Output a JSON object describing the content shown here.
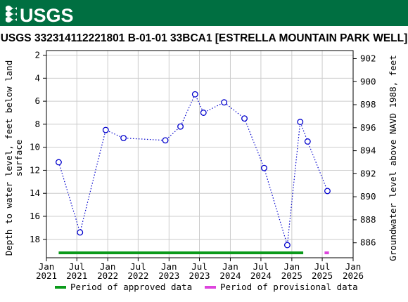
{
  "header": {
    "logo_text": "USGS",
    "bar_color": "#006f41"
  },
  "chart_data": {
    "type": "scatter",
    "title": "USGS 332314112221801 B-01-01 33BCA1 [ESTRELLA MOUNTAIN PARK WELL]",
    "ylabel_left": "Depth to water level, feet below land surface",
    "ylabel_right": "Groundwater level above NAVD 1988, feet",
    "y_left_range": [
      19.6,
      1.6
    ],
    "y_left_ticks": [
      2,
      4,
      6,
      8,
      10,
      12,
      14,
      16,
      18
    ],
    "y_right_ticks": [
      886,
      888,
      890,
      892,
      894,
      896,
      898,
      900,
      902
    ],
    "right_axis_offset": 904.3,
    "x_range": [
      "2021-01-01",
      "2026-01-01"
    ],
    "x_ticks": [
      {
        "date": "2021-01-01",
        "label1": "Jan",
        "label2": "2021"
      },
      {
        "date": "2021-07-01",
        "label1": "Jul",
        "label2": "2021"
      },
      {
        "date": "2022-01-01",
        "label1": "Jan",
        "label2": "2022"
      },
      {
        "date": "2022-07-01",
        "label1": "Jul",
        "label2": "2022"
      },
      {
        "date": "2023-01-01",
        "label1": "Jan",
        "label2": "2023"
      },
      {
        "date": "2023-07-01",
        "label1": "Jul",
        "label2": "2023"
      },
      {
        "date": "2024-01-01",
        "label1": "Jan",
        "label2": "2024"
      },
      {
        "date": "2024-07-01",
        "label1": "Jul",
        "label2": "2024"
      },
      {
        "date": "2025-01-01",
        "label1": "Jan",
        "label2": "2025"
      },
      {
        "date": "2025-07-01",
        "label1": "Jul",
        "label2": "2025"
      },
      {
        "date": "2026-01-01",
        "label1": "Jan",
        "label2": "2026"
      }
    ],
    "series": [
      {
        "points": [
          {
            "date": "2021-03-15",
            "value": 11.3
          },
          {
            "date": "2021-07-20",
            "value": 17.4
          },
          {
            "date": "2021-12-20",
            "value": 8.5
          },
          {
            "date": "2022-04-05",
            "value": 9.2
          },
          {
            "date": "2022-12-10",
            "value": 9.4
          },
          {
            "date": "2023-03-10",
            "value": 8.2
          },
          {
            "date": "2023-06-05",
            "value": 5.4
          },
          {
            "date": "2023-07-25",
            "value": 7.0
          },
          {
            "date": "2023-11-25",
            "value": 6.1
          },
          {
            "date": "2024-03-25",
            "value": 7.5
          },
          {
            "date": "2024-07-20",
            "value": 11.8
          },
          {
            "date": "2024-12-05",
            "value": 18.5
          },
          {
            "date": "2025-02-20",
            "value": 7.8
          },
          {
            "date": "2025-04-05",
            "value": 9.5
          },
          {
            "date": "2025-08-01",
            "value": 13.8
          }
        ],
        "color": "#0000cc",
        "style": "dotted line with open circles"
      }
    ],
    "periods": [
      {
        "label": "Period of approved data",
        "start": "2021-03-15",
        "end": "2025-03-10",
        "color": "#0a9a1a"
      },
      {
        "label": "Period of provisional data",
        "start": "2025-07-15",
        "end": "2025-08-10",
        "color": "#dd44dd"
      }
    ],
    "grid": true,
    "legend_placement": "bottom"
  }
}
